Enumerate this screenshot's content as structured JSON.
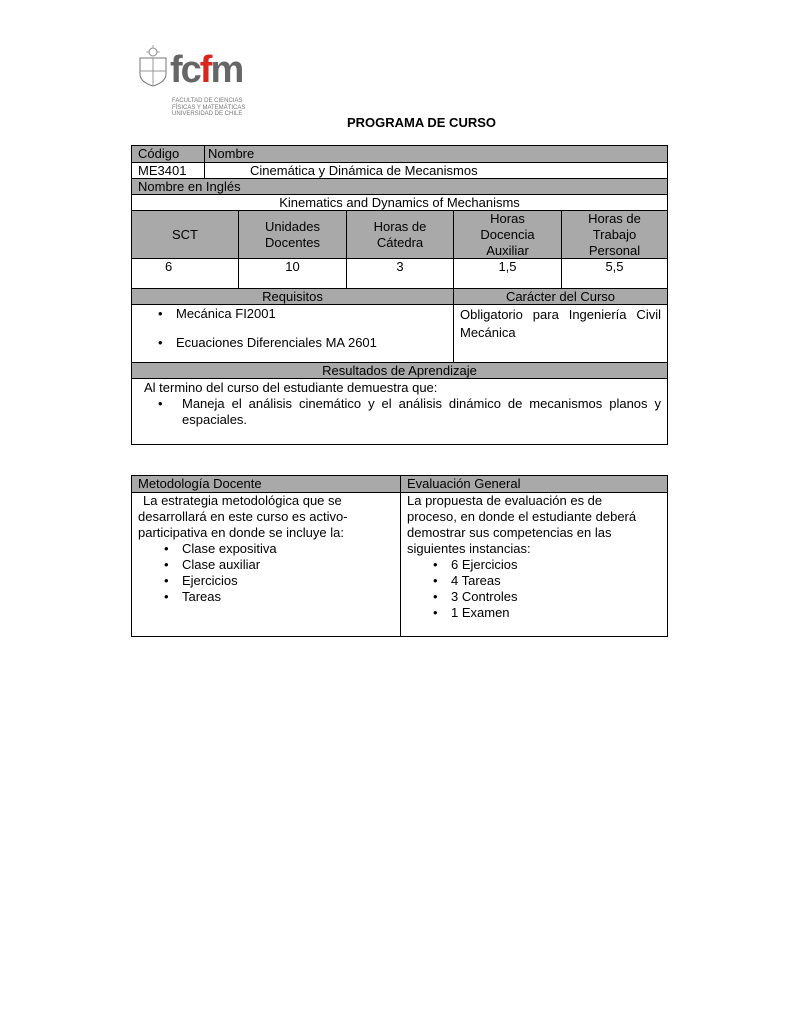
{
  "logo": {
    "text": "fcfm",
    "subtitle": [
      "FACULTAD DE CIENCIAS",
      "FÍSICAS Y MATEMÁTICAS",
      "UNIVERSIDAD DE CHILE"
    ]
  },
  "title": "PROGRAMA DE CURSO",
  "course": {
    "codigo_label": "Código",
    "nombre_label": "Nombre",
    "codigo": "ME3401",
    "nombre": "Cinemática y Dinámica de Mecanismos",
    "ingles_label": "Nombre en Inglés",
    "ingles": "Kinematics and Dynamics of Mechanisms",
    "headers": [
      "SCT",
      "Unidades Docentes",
      "Horas de Cátedra",
      "Horas Docencia Auxiliar",
      "Horas de Trabajo Personal"
    ],
    "values": [
      "6",
      "10",
      "3",
      "1,5",
      "5,5"
    ],
    "requisitos_label": "Requisitos",
    "caracter_label": "Carácter del Curso",
    "requisitos": [
      "Mecánica FI2001",
      "Ecuaciones Diferenciales MA 2601"
    ],
    "caracter": "Obligatorio para Ingeniería Civil Mecánica",
    "resultados_label": "Resultados de Aprendizaje",
    "resultados_intro": "Al termino del curso del estudiante demuestra que:",
    "resultados": [
      "Maneja el  análisis cinemático y el análisis dinámico de mecanismos planos y espaciales."
    ]
  },
  "metodologia": {
    "label": "Metodología Docente",
    "intro": "La estrategia metodológica que se desarrollará en este curso es activo-participativa en donde se incluye la:",
    "items": [
      "Clase expositiva",
      "Clase auxiliar",
      "Ejercicios",
      "Tareas"
    ]
  },
  "evaluacion": {
    "label": "Evaluación General",
    "intro": "La propuesta de evaluación es de proceso, en donde el estudiante deberá demostrar sus competencias en las siguientes instancias:",
    "items": [
      "6 Ejercicios",
      "4 Tareas",
      "3 Controles",
      "1 Examen"
    ]
  }
}
